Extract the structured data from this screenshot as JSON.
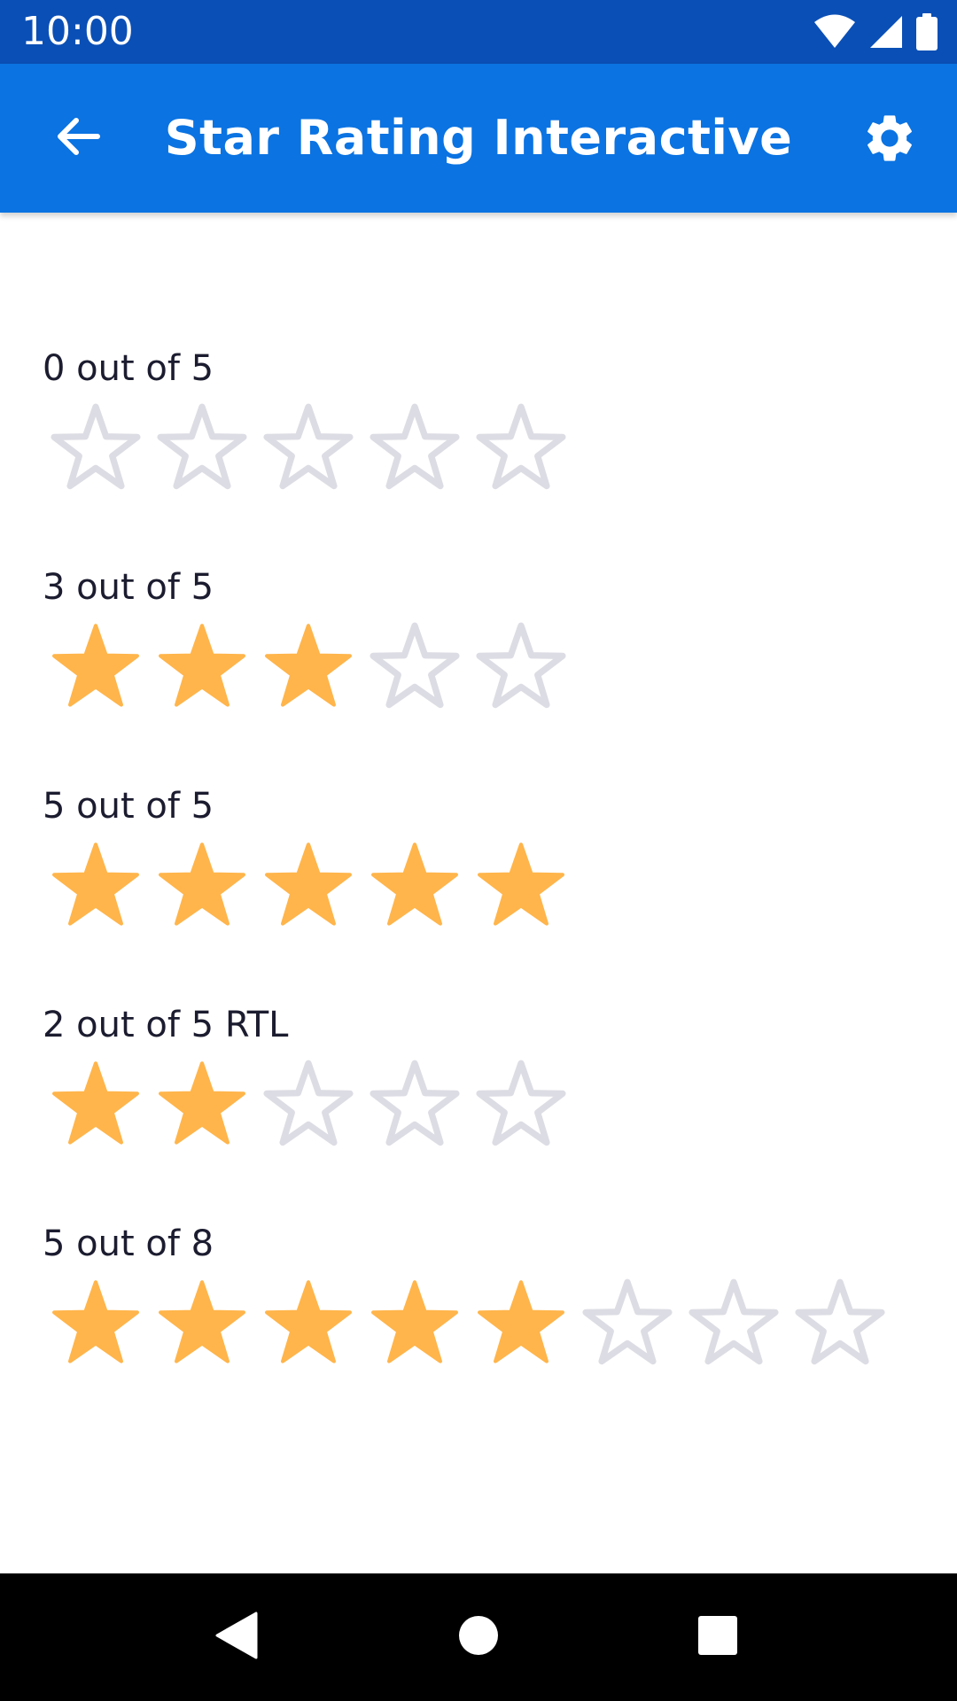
{
  "status_bar": {
    "time": "10:00",
    "icons": [
      "wifi-icon",
      "cellular-signal-icon",
      "battery-icon"
    ]
  },
  "app_bar": {
    "title": "Star Rating Interactive",
    "back_icon": "arrow-left-icon",
    "settings_icon": "gear-icon"
  },
  "colors": {
    "status_bar": "#0a4fb6",
    "app_bar": "#0b73e2",
    "star_filled": "#ffb54b",
    "star_empty_stroke": "#dcdce4",
    "label_text": "#1c1c30"
  },
  "ratings": [
    {
      "label": "0 out of 5",
      "value": 0,
      "max": 5,
      "rtl": false
    },
    {
      "label": "3 out of 5",
      "value": 3,
      "max": 5,
      "rtl": false
    },
    {
      "label": "5 out of 5",
      "value": 5,
      "max": 5,
      "rtl": false
    },
    {
      "label": "2 out of 5 RTL",
      "value": 2,
      "max": 5,
      "rtl": true
    },
    {
      "label": "5 out of 8",
      "value": 5,
      "max": 8,
      "rtl": false
    }
  ],
  "nav_bar": {
    "icons": [
      "back-triangle-icon",
      "home-circle-icon",
      "recents-square-icon"
    ]
  }
}
